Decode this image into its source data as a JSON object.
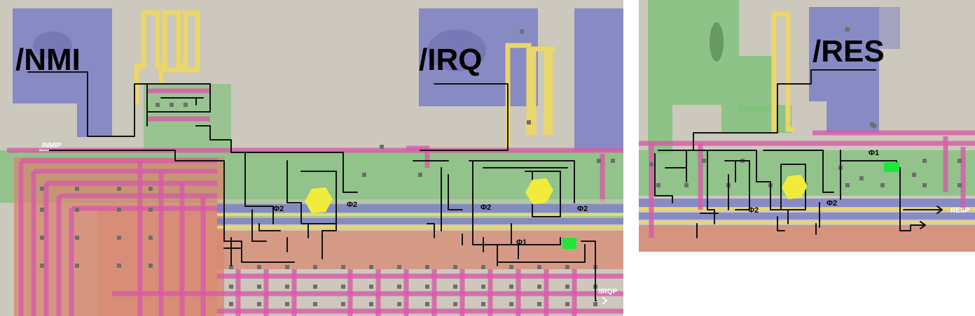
{
  "colors": {
    "substrate": "#ccc8bd",
    "pad": "#7b7fc6",
    "poly": "#ead66a",
    "diffusion": "#7ec27a",
    "metal": "#d75aa8",
    "buried": "#d8866e",
    "bus_blue": "#7c80c8",
    "contact": "#6e6e6e",
    "node": "#f1ec3c",
    "wire": "#111111",
    "arrow_white": "#ffffff",
    "bright_green": "#1ee63a"
  },
  "left_panel": {
    "pad_labels": {
      "nmi": "/NMI",
      "irq": "/IRQ"
    },
    "signal_labels": {
      "nmip": "/NMIP",
      "irqp": "/IRQP"
    },
    "phase_labels": [
      "Φ2",
      "Φ2",
      "Φ2",
      "Φ2",
      "Φ1"
    ]
  },
  "right_panel": {
    "pad_labels": {
      "res": "/RES"
    },
    "signal_labels": {
      "resp": "RESP"
    },
    "phase_labels": [
      "Φ1",
      "Φ2",
      "Φ2"
    ]
  }
}
